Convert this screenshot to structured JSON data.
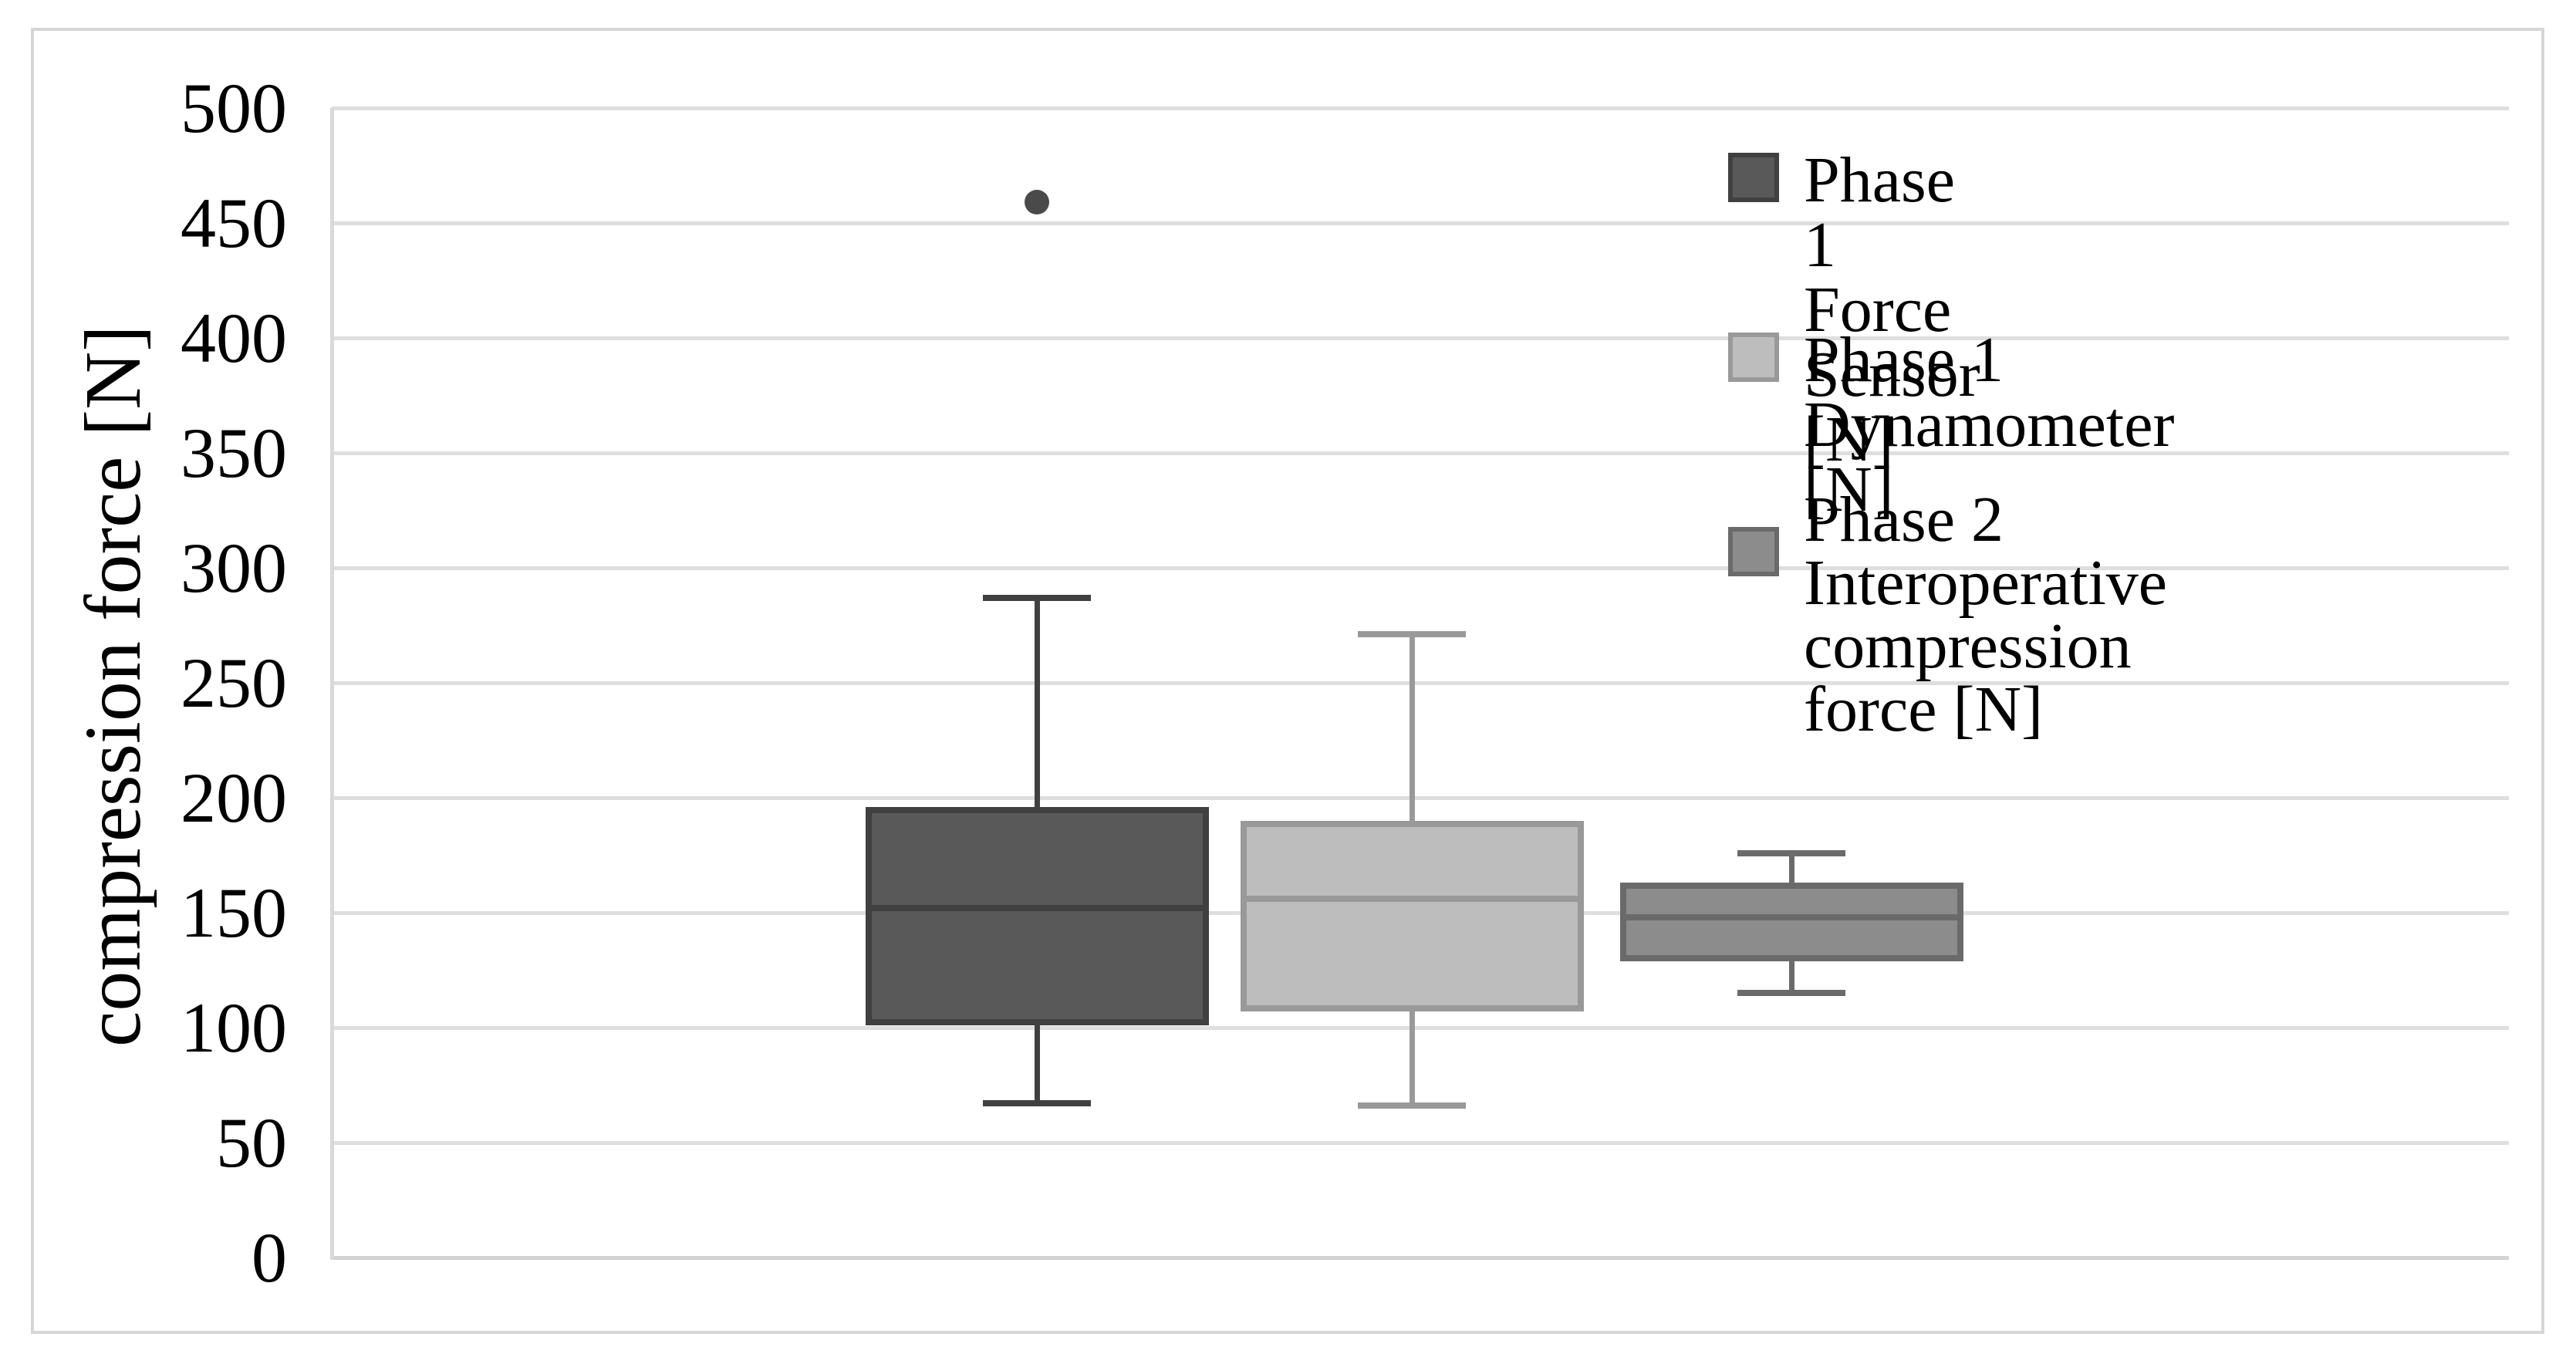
{
  "figure": {
    "background": "#ffffff",
    "border_color": "#d6d6d6"
  },
  "y_axis": {
    "label": "compression force [N]",
    "min": 0,
    "max": 500,
    "tick_step": 50,
    "ticks": [
      0,
      50,
      100,
      150,
      200,
      250,
      300,
      350,
      400,
      450,
      500
    ],
    "text_color": "#000000",
    "gridline_color": "#dedede",
    "axis_line_color": "#d9d9d9"
  },
  "legend": {
    "position": "top-right",
    "items": [
      {
        "label": "Phase 1 Force Sensor [N]",
        "swatch_color": "#595959",
        "swatch_border": "#404040"
      },
      {
        "label": "Phase 1 Dynamometer [N]",
        "swatch_color": "#bdbdbd",
        "swatch_border": "#999999"
      },
      {
        "label": "Phase 2 Interoperative\n compression force [N]",
        "swatch_color": "#8c8c8c",
        "swatch_border": "#6a6a6a"
      }
    ]
  },
  "chart_data": {
    "type": "boxplot",
    "title": "",
    "xlabel": "",
    "ylabel": "compression force [N]",
    "ylim": [
      0,
      500
    ],
    "ytick_step": 50,
    "grid": true,
    "legend_position": "top-right",
    "series": [
      {
        "name": "Phase 1 Force Sensor [N]",
        "whisker_low": 67,
        "q1": 101,
        "median": 152,
        "q3": 196,
        "whisker_high": 287,
        "outliers": [
          459
        ],
        "fill": "#595959",
        "stroke": "#404040"
      },
      {
        "name": "Phase 1 Dynamometer [N]",
        "whisker_low": 66,
        "q1": 107,
        "median": 156,
        "q3": 190,
        "whisker_high": 271,
        "outliers": [],
        "fill": "#bdbdbd",
        "stroke": "#999999"
      },
      {
        "name": "Phase 2 Interoperative compression force [N]",
        "whisker_low": 115,
        "q1": 129,
        "median": 148,
        "q3": 163,
        "whisker_high": 176,
        "outliers": [],
        "fill": "#8c8c8c",
        "stroke": "#6a6a6a"
      }
    ],
    "outlier_color": "#4a4a4a"
  }
}
